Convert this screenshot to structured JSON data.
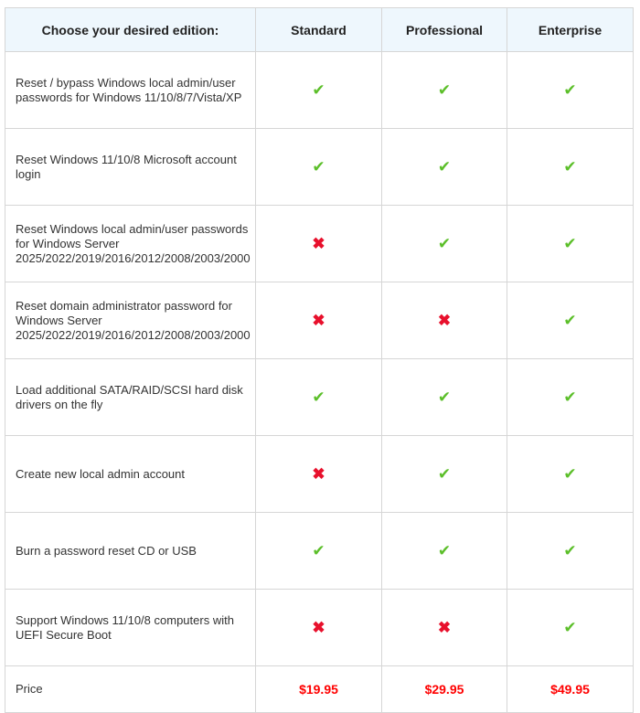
{
  "header": {
    "feature_label": "Choose your desired edition:",
    "editions": [
      "Standard",
      "Professional",
      "Enterprise"
    ]
  },
  "icons": {
    "yes": "check-icon",
    "no": "cross-icon"
  },
  "colors": {
    "yes": "#5cbf2a",
    "no": "#e8102c",
    "price": "#ff0000",
    "header_bg": "#eef7fd"
  },
  "rows": [
    {
      "feature": "Reset / bypass Windows local admin/user passwords for Windows 11/10/8/7/Vista/XP",
      "support": [
        true,
        true,
        true
      ]
    },
    {
      "feature": "Reset Windows 11/10/8 Microsoft account login",
      "support": [
        true,
        true,
        true
      ]
    },
    {
      "feature": "Reset Windows local admin/user passwords for Windows Server 2025/2022/2019/2016/2012/2008/2003/2000",
      "support": [
        false,
        true,
        true
      ]
    },
    {
      "feature": "Reset domain administrator password for Windows Server 2025/2022/2019/2016/2012/2008/2003/2000",
      "support": [
        false,
        false,
        true
      ]
    },
    {
      "feature": "Load additional SATA/RAID/SCSI hard disk drivers on the fly",
      "support": [
        true,
        true,
        true
      ]
    },
    {
      "feature": "Create new local admin account",
      "support": [
        false,
        true,
        true
      ]
    },
    {
      "feature": "Burn a password reset CD or USB",
      "support": [
        true,
        true,
        true
      ]
    },
    {
      "feature": "Support Windows 11/10/8 computers with UEFI Secure Boot",
      "support": [
        false,
        false,
        true
      ]
    }
  ],
  "price": {
    "label": "Price",
    "values": [
      "$19.95",
      "$29.95",
      "$49.95"
    ]
  }
}
